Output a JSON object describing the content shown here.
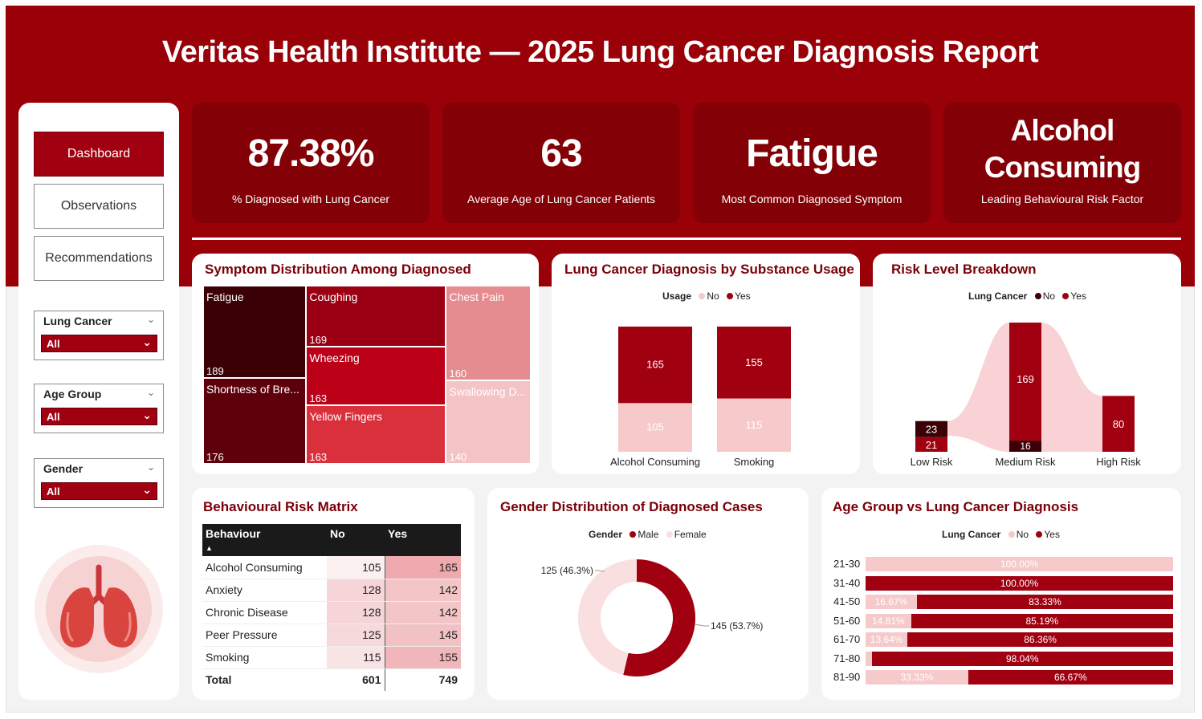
{
  "title": "Veritas Health Institute — 2025 Lung Cancer Diagnosis Report",
  "nav": [
    {
      "label": "Dashboard",
      "active": true
    },
    {
      "label": "Observations",
      "active": false
    },
    {
      "label": "Recommendations",
      "active": false
    }
  ],
  "filters": [
    {
      "label": "Lung Cancer",
      "value": "All"
    },
    {
      "label": "Age Group",
      "value": "All"
    },
    {
      "label": "Gender",
      "value": "All"
    }
  ],
  "kpis": [
    {
      "value": "87.38%",
      "caption": "% Diagnosed with Lung Cancer"
    },
    {
      "value": "63",
      "caption": "Average Age of Lung Cancer Patients"
    },
    {
      "value": "Fatigue",
      "caption": "Most Common Diagnosed Symptom"
    },
    {
      "value": "Alcohol Consuming",
      "caption": "Leading Behavioural Risk Factor"
    }
  ],
  "colors": {
    "brand": "#990008",
    "kpi_bg": "#820006",
    "yes": "#a00010",
    "no": "#f6c9cb",
    "dark": "#3a0006"
  },
  "symptoms": {
    "title": "Symptom Distribution Among Diagnosed",
    "chart_data": {
      "type": "treemap",
      "items": [
        {
          "name": "Fatigue",
          "label": "Fatigue",
          "value": 189,
          "color": "#3a0006"
        },
        {
          "name": "Shortness of Breath",
          "label": "Shortness of Bre...",
          "value": 176,
          "color": "#5e000c"
        },
        {
          "name": "Coughing",
          "label": "Coughing",
          "value": 169,
          "color": "#9a0012"
        },
        {
          "name": "Wheezing",
          "label": "Wheezing",
          "value": 163,
          "color": "#bb0018"
        },
        {
          "name": "Yellow Fingers",
          "label": "Yellow Fingers",
          "value": 163,
          "color": "#d9303c"
        },
        {
          "name": "Chest Pain",
          "label": "Chest Pain",
          "value": 160,
          "color": "#e58c90"
        },
        {
          "name": "Swallowing Difficulty",
          "label": "Swallowing D...",
          "value": 140,
          "color": "#f4c3c6"
        }
      ]
    }
  },
  "substance": {
    "title": "Lung Cancer Diagnosis by Substance Usage",
    "legend_title": "Usage",
    "legend": [
      "No",
      "Yes"
    ],
    "chart_data": {
      "type": "bar",
      "stacked": true,
      "categories": [
        "Alcohol Consuming",
        "Smoking"
      ],
      "series": [
        {
          "name": "No",
          "values": [
            105,
            115
          ]
        },
        {
          "name": "Yes",
          "values": [
            165,
            155
          ]
        }
      ]
    }
  },
  "risk": {
    "title": "Risk Level Breakdown",
    "legend_title": "Lung Cancer",
    "legend": [
      "No",
      "Yes"
    ],
    "chart_data": {
      "type": "bar",
      "stacked": true,
      "categories": [
        "Low Risk",
        "Medium Risk",
        "High Risk"
      ],
      "series": [
        {
          "name": "No",
          "values": [
            23,
            16,
            0
          ]
        },
        {
          "name": "Yes",
          "values": [
            21,
            169,
            80
          ]
        }
      ]
    }
  },
  "matrix": {
    "title": "Behavioural Risk Matrix",
    "headers": [
      "Behaviour",
      "No",
      "Yes"
    ],
    "rows": [
      {
        "behaviour": "Alcohol Consuming",
        "no": "105",
        "yes": "165",
        "no_v": 105,
        "yes_v": 165
      },
      {
        "behaviour": "Anxiety",
        "no": "128",
        "yes": "142",
        "no_v": 128,
        "yes_v": 142
      },
      {
        "behaviour": "Chronic Disease",
        "no": "128",
        "yes": "142",
        "no_v": 128,
        "yes_v": 142
      },
      {
        "behaviour": "Peer Pressure",
        "no": "125",
        "yes": "145",
        "no_v": 125,
        "yes_v": 145
      },
      {
        "behaviour": "Smoking",
        "no": "115",
        "yes": "155",
        "no_v": 115,
        "yes_v": 155
      }
    ],
    "total": {
      "label": "Total",
      "no": "601",
      "yes": "749"
    }
  },
  "gender": {
    "title": "Gender Distribution of Diagnosed Cases",
    "legend_title": "Gender",
    "legend": [
      "Male",
      "Female"
    ],
    "chart_data": {
      "type": "pie",
      "donut": true,
      "slices": [
        {
          "name": "Male",
          "value": 145,
          "label": "145 (53.7%)"
        },
        {
          "name": "Female",
          "value": 125,
          "label": "125 (46.3%)"
        }
      ]
    }
  },
  "agegroup": {
    "title": "Age Group vs Lung Cancer Diagnosis",
    "legend_title": "Lung Cancer",
    "legend": [
      "No",
      "Yes"
    ],
    "chart_data": {
      "type": "bar",
      "orientation": "horizontal",
      "stacked_percent": true,
      "categories": [
        "21-30",
        "31-40",
        "41-50",
        "51-60",
        "61-70",
        "71-80",
        "81-90"
      ],
      "series": [
        {
          "name": "No",
          "values": [
            100.0,
            0,
            16.67,
            14.81,
            13.64,
            1.96,
            33.33
          ],
          "labels": [
            "100.00%",
            "",
            "16.67%",
            "14.81%",
            "13.64%",
            "",
            "33.33%"
          ]
        },
        {
          "name": "Yes",
          "values": [
            0,
            100.0,
            83.33,
            85.19,
            86.36,
            98.04,
            66.67
          ],
          "labels": [
            "",
            "100.00%",
            "83.33%",
            "85.19%",
            "86.36%",
            "98.04%",
            "66.67%"
          ]
        }
      ]
    }
  }
}
